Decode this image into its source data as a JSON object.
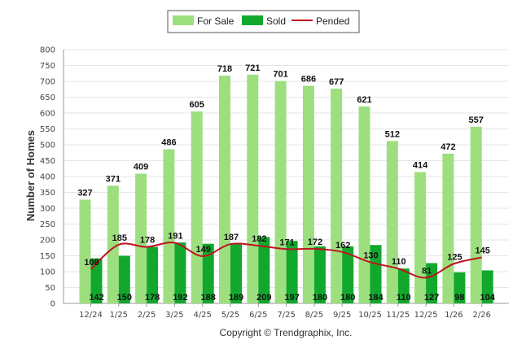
{
  "chart_data": {
    "type": "bar",
    "categories": [
      "12/24",
      "1/25",
      "2/25",
      "3/25",
      "4/25",
      "5/25",
      "6/25",
      "7/25",
      "8/25",
      "9/25",
      "10/25",
      "11/25",
      "12/25",
      "1/26",
      "2/26"
    ],
    "series": [
      {
        "name": "For Sale",
        "type": "bar",
        "color": "#9ddf7f",
        "values": [
          327,
          371,
          409,
          486,
          605,
          718,
          721,
          701,
          686,
          677,
          621,
          512,
          414,
          472,
          557
        ]
      },
      {
        "name": "Sold",
        "type": "bar",
        "color": "#12a82d",
        "values": [
          142,
          150,
          178,
          192,
          188,
          189,
          209,
          197,
          180,
          180,
          184,
          110,
          127,
          98,
          104
        ]
      },
      {
        "name": "Pended",
        "type": "line",
        "color": "#c0121e",
        "values": [
          108,
          185,
          178,
          191,
          149,
          187,
          182,
          171,
          172,
          162,
          130,
          110,
          81,
          125,
          145
        ]
      }
    ],
    "ylabel": "Number of Homes",
    "ylim": [
      0,
      800
    ],
    "yticks": [
      "0",
      "50",
      "100",
      "150",
      "200",
      "250",
      "300",
      "350",
      "400",
      "450",
      "500",
      "550",
      "600",
      "650",
      "700",
      "750",
      "800"
    ],
    "grid": true,
    "legend_position": "top-center"
  },
  "footer": {
    "credit": "Copyright © Trendgraphix, Inc."
  }
}
